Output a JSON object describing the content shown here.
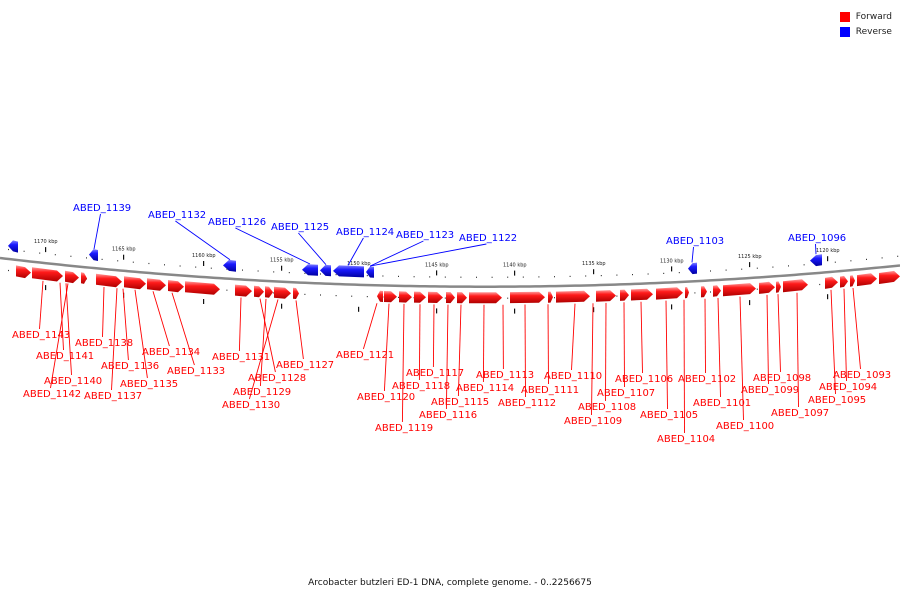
{
  "colors": {
    "forward": "#ff0000",
    "reverse": "#0000ff",
    "backbone": "#888888"
  },
  "legend": [
    {
      "label": "Forward",
      "color": "#ff0000"
    },
    {
      "label": "Reverse",
      "color": "#0000ff"
    }
  ],
  "caption": "Arcobacter butzleri ED-1 DNA, complete genome. - 0..2256675",
  "scale_labels": [
    "1170 kbp",
    "1165 kbp",
    "1160 kbp",
    "1155 kbp",
    "1150 kbp",
    "1145 kbp",
    "1140 kbp",
    "1135 kbp",
    "1130 kbp",
    "1125 kbp",
    "1120 kbp"
  ],
  "reverse_genes": [
    "ABED_1139",
    "ABED_1132",
    "ABED_1126",
    "ABED_1125",
    "ABED_1124",
    "ABED_1123",
    "ABED_1122",
    "ABED_1103",
    "ABED_1096"
  ],
  "forward_genes": [
    "ABED_1143",
    "ABED_1141",
    "ABED_1140",
    "ABED_1142",
    "ABED_1138",
    "ABED_1136",
    "ABED_1137",
    "ABED_1135",
    "ABED_1134",
    "ABED_1133",
    "ABED_1131",
    "ABED_1128",
    "ABED_1129",
    "ABED_1130",
    "ABED_1127",
    "ABED_1121",
    "ABED_1120",
    "ABED_1119",
    "ABED_1118",
    "ABED_1117",
    "ABED_1116",
    "ABED_1115",
    "ABED_1114",
    "ABED_1113",
    "ABED_1112",
    "ABED_1111",
    "ABED_1110",
    "ABED_1109",
    "ABED_1108",
    "ABED_1107",
    "ABED_1106",
    "ABED_1105",
    "ABED_1104",
    "ABED_1102",
    "ABED_1101",
    "ABED_1100",
    "ABED_1099",
    "ABED_1098",
    "ABED_1097",
    "ABED_1095",
    "ABED_1094",
    "ABED_1093"
  ]
}
